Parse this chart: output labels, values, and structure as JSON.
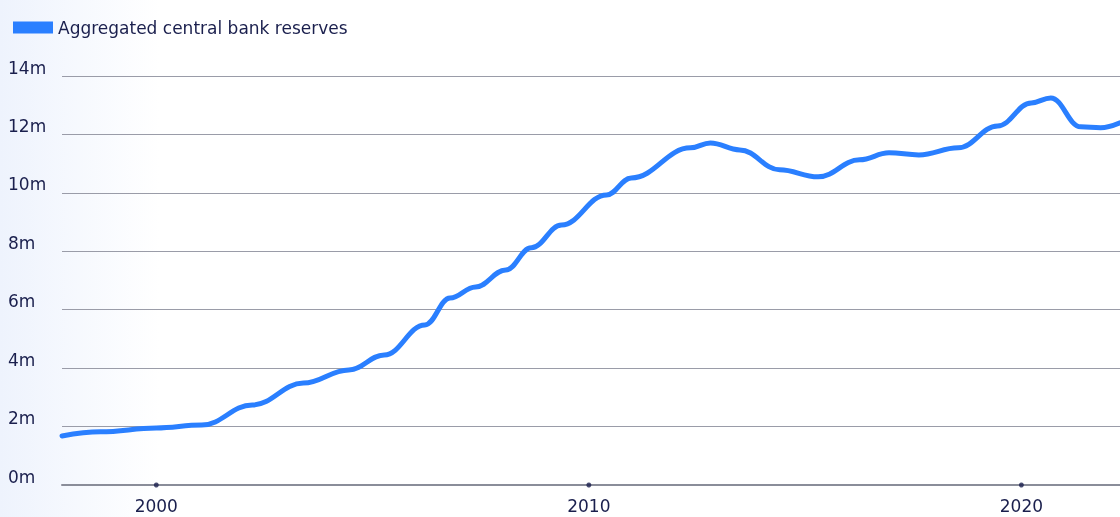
{
  "chart_data": {
    "type": "line",
    "x": [
      1997.82,
      1998.71,
      2000,
      2001.05,
      2002.22,
      2003.4,
      2004.45,
      2005.27,
      2006.21,
      2006.79,
      2007.38,
      2008.08,
      2008.67,
      2009.37,
      2010.41,
      2010.98,
      2012.35,
      2012.81,
      2013.49,
      2014.41,
      2015.3,
      2016.26,
      2016.94,
      2017.63,
      2018.54,
      2019.45,
      2020.23,
      2020.68,
      2021.37,
      2021.83,
      2022.28
    ],
    "series": [
      {
        "name": "Aggregated central bank reserves",
        "color": "#2a7fff",
        "values": [
          1.68,
          1.82,
          1.95,
          2.05,
          2.74,
          3.49,
          3.94,
          4.45,
          5.48,
          6.4,
          6.78,
          7.36,
          8.12,
          8.9,
          9.93,
          10.51,
          11.54,
          11.71,
          11.47,
          10.79,
          10.55,
          11.13,
          11.37,
          11.3,
          11.54,
          12.29,
          13.08,
          13.25,
          12.26,
          12.23,
          12.4
        ]
      }
    ],
    "xlim": [
      1997.82,
      2022.28
    ],
    "xticks": [
      2000,
      2010,
      2020
    ],
    "ylim": [
      0,
      14
    ],
    "yticks": [
      {
        "value": 0,
        "label": "0m"
      },
      {
        "value": 2,
        "label": "2m"
      },
      {
        "value": 4,
        "label": "4m"
      },
      {
        "value": 6,
        "label": "6m"
      },
      {
        "value": 8,
        "label": "8m"
      },
      {
        "value": 10,
        "label": "10m"
      },
      {
        "value": 12,
        "label": "12m"
      },
      {
        "value": 14,
        "label": "14m"
      }
    ],
    "grid": "y",
    "legend": "top left",
    "marker": "none",
    "line_style": "solid"
  }
}
